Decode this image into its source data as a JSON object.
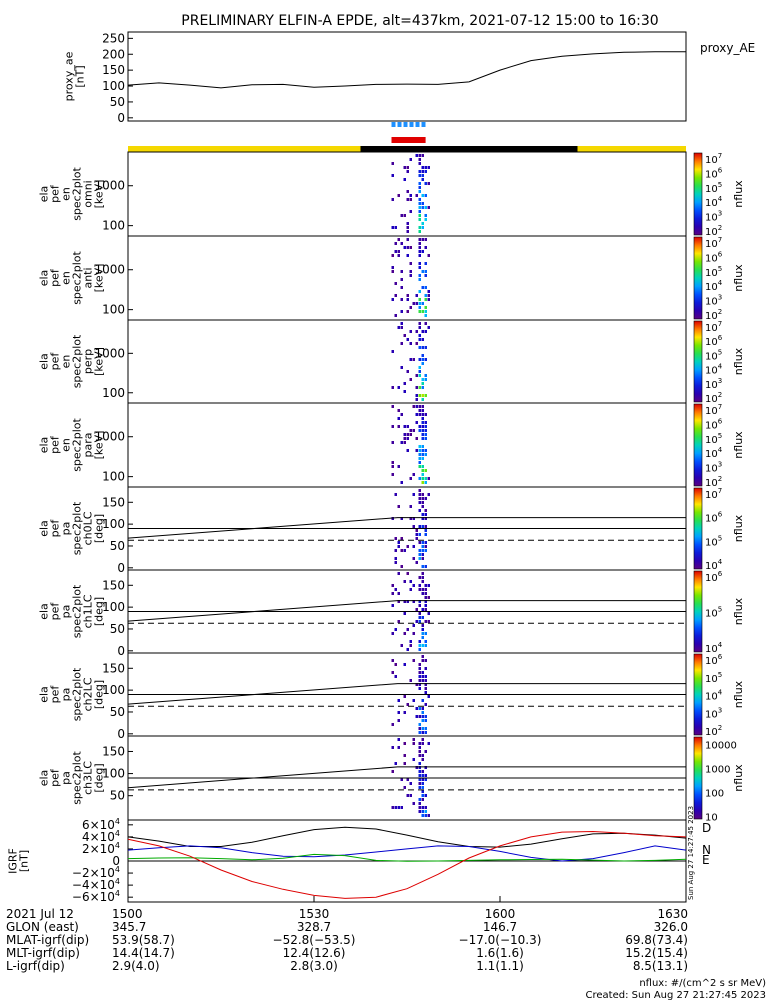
{
  "title": "PRELIMINARY ELFIN-A EPDE, alt=437km, 2021-07-12 15:00 to 16:30",
  "colors": {
    "sci_zone_yellow": "#f5d800",
    "sci_zone_black": "#000000",
    "red_bar": "#e00000",
    "blue_dots": "#1e90ff",
    "bx_line": "#0000cc",
    "by_line": "#00aa00",
    "bz_line": "#dd0000",
    "bmag_line": "#000000"
  },
  "chart_data": [
    {
      "id": "proxy_ae",
      "type": "line",
      "ylabel_lines": [
        "proxy_ae",
        "[nT]"
      ],
      "legend": "proxy_AE",
      "ylim": [
        -10,
        270
      ],
      "yticks": [
        "0",
        "50",
        "100",
        "150",
        "200",
        "250"
      ],
      "ytick_values": [
        0,
        50,
        100,
        150,
        200,
        250
      ],
      "x_minutes": [
        0,
        5,
        10,
        15,
        20,
        25,
        30,
        35,
        40,
        45,
        50,
        55,
        60,
        65,
        70,
        75,
        80,
        85,
        90
      ],
      "values": [
        103,
        110,
        103,
        94,
        104,
        105,
        96,
        100,
        105,
        106,
        105,
        113,
        150,
        180,
        194,
        201,
        206,
        208,
        208
      ]
    },
    {
      "id": "spec_omni",
      "type": "heatmap",
      "ylabel_lines": [
        "ela",
        "pef",
        "en",
        "spec2plot",
        "omni",
        "[keV]"
      ],
      "yscale": "log",
      "ylim": [
        55,
        7000
      ],
      "yticks": [
        "100",
        "1000"
      ],
      "ytick_values": [
        100,
        1000
      ],
      "zlabel": "nflux",
      "ztick_exps": [
        "2",
        "3",
        "4",
        "5",
        "6",
        "7"
      ],
      "zbase": "10"
    },
    {
      "id": "spec_anti",
      "type": "heatmap",
      "ylabel_lines": [
        "ela",
        "pef",
        "en",
        "spec2plot",
        "anti",
        "[keV]"
      ],
      "yscale": "log",
      "ylim": [
        55,
        7000
      ],
      "yticks": [
        "100",
        "1000"
      ],
      "ytick_values": [
        100,
        1000
      ],
      "zlabel": "nflux",
      "ztick_exps": [
        "2",
        "3",
        "4",
        "5",
        "6",
        "7"
      ],
      "zbase": "10"
    },
    {
      "id": "spec_perp",
      "type": "heatmap",
      "ylabel_lines": [
        "ela",
        "pef",
        "en",
        "spec2plot",
        "perp",
        "[keV]"
      ],
      "yscale": "log",
      "ylim": [
        55,
        7000
      ],
      "yticks": [
        "100",
        "1000"
      ],
      "ytick_values": [
        100,
        1000
      ],
      "zlabel": "nflux",
      "ztick_exps": [
        "2",
        "3",
        "4",
        "5",
        "6",
        "7"
      ],
      "zbase": "10"
    },
    {
      "id": "spec_para",
      "type": "heatmap",
      "ylabel_lines": [
        "ela",
        "pef",
        "en",
        "spec2plot",
        "para",
        "[keV]"
      ],
      "yscale": "log",
      "ylim": [
        55,
        7000
      ],
      "yticks": [
        "100",
        "1000"
      ],
      "ytick_values": [
        100,
        1000
      ],
      "zlabel": "nflux",
      "ztick_exps": [
        "2",
        "3",
        "4",
        "5",
        "6",
        "7"
      ],
      "zbase": "10"
    },
    {
      "id": "pa_ch0",
      "type": "heatmap",
      "ylabel_lines": [
        "ela",
        "pef",
        "pa",
        "spec2plot",
        "ch0LC",
        "[deg]"
      ],
      "ylim": [
        -5,
        185
      ],
      "yticks": [
        "0",
        "50",
        "100",
        "150"
      ],
      "ytick_values": [
        0,
        50,
        100,
        150
      ],
      "zlabel": "nflux",
      "ztick_exps": [
        "4",
        "5",
        "6",
        "7"
      ],
      "zbase": "10"
    },
    {
      "id": "pa_ch1",
      "type": "heatmap",
      "ylabel_lines": [
        "ela",
        "pef",
        "pa",
        "spec2plot",
        "ch1LC",
        "[deg]"
      ],
      "ylim": [
        -5,
        185
      ],
      "yticks": [
        "0",
        "50",
        "100",
        "150"
      ],
      "ytick_values": [
        0,
        50,
        100,
        150
      ],
      "zlabel": "nflux",
      "ztick_exps": [
        "4",
        "5",
        "6"
      ],
      "zbase": "10"
    },
    {
      "id": "pa_ch2",
      "type": "heatmap",
      "ylabel_lines": [
        "ela",
        "pef",
        "pa",
        "spec2plot",
        "ch2LC",
        "[deg]"
      ],
      "ylim": [
        -5,
        185
      ],
      "yticks": [
        "0",
        "50",
        "100",
        "150"
      ],
      "ytick_values": [
        0,
        50,
        100,
        150
      ],
      "zlabel": "nflux",
      "ztick_exps": [
        "2",
        "3",
        "4",
        "5",
        "6"
      ],
      "zbase": "10"
    },
    {
      "id": "pa_ch3",
      "type": "heatmap",
      "ylabel_lines": [
        "ela",
        "pef",
        "pa",
        "spec2plot",
        "ch3LC",
        "[deg]"
      ],
      "ylim": [
        -5,
        185
      ],
      "yticks": [
        "50",
        "100",
        "150"
      ],
      "ytick_values": [
        50,
        100,
        150
      ],
      "zlabel": "nflux",
      "ztick_plain": [
        "10",
        "100",
        "1000",
        "10000"
      ],
      "ztick_plain_values": [
        10,
        100,
        1000,
        10000
      ]
    },
    {
      "id": "igrf",
      "type": "line",
      "ylabel_lines": [
        "IGRF",
        "[nT]"
      ],
      "ylim": [
        -68000,
        68000
      ],
      "yticks": [
        "−6×10",
        "−4×10",
        "−2×10",
        "0",
        "2×10",
        "4×10",
        "6×10"
      ],
      "ytick_values": [
        -60000,
        -40000,
        -20000,
        0,
        20000,
        40000,
        60000
      ],
      "ytick_exp": "4",
      "legend_letters": [
        "D",
        "N",
        "E"
      ],
      "x_minutes": [
        0,
        5,
        10,
        15,
        20,
        25,
        30,
        35,
        40,
        45,
        50,
        55,
        60,
        65,
        70,
        75,
        80,
        85,
        90
      ],
      "series": [
        {
          "key": "bmag",
          "values": [
            40000,
            33000,
            24000,
            24000,
            31000,
            42000,
            52000,
            56000,
            53000,
            43000,
            32000,
            24000,
            23000,
            28000,
            37000,
            45000,
            46000,
            43000,
            38000
          ]
        },
        {
          "key": "bx",
          "values": [
            18000,
            22000,
            25000,
            22000,
            14000,
            8000,
            7000,
            10000,
            15000,
            20000,
            25000,
            24000,
            16000,
            6000,
            0,
            4000,
            14000,
            25000,
            18000
          ]
        },
        {
          "key": "by",
          "values": [
            4000,
            5000,
            5500,
            4000,
            2000,
            4500,
            11000,
            9000,
            1000,
            -500,
            0,
            1000,
            2000,
            2500,
            3000,
            1500,
            0,
            1000,
            3000
          ]
        },
        {
          "key": "bz",
          "values": [
            36000,
            25000,
            8000,
            -15000,
            -34000,
            -47000,
            -57000,
            -62000,
            -60000,
            -46000,
            -22000,
            5000,
            25000,
            40000,
            48000,
            49000,
            46000,
            42000,
            40000
          ]
        }
      ]
    }
  ],
  "x_axis": {
    "tick_labels": [
      "1500",
      "1530",
      "1600",
      "1630"
    ],
    "tick_minutes": [
      0,
      30,
      60,
      90
    ]
  },
  "orbit_table": {
    "row_labels": [
      "2021 Jul 12",
      "GLON (east)",
      "MLAT-igrf(dip)",
      "MLT-igrf(dip)",
      "L-igrf(dip)"
    ],
    "columns": [
      [
        "1500",
        "345.7",
        "53.9(58.7)",
        "14.4(14.7)",
        "2.9(4.0)"
      ],
      [
        "1530",
        "328.7",
        "−52.8(−53.5)",
        "12.4(12.6)",
        "2.8(3.0)"
      ],
      [
        "1600",
        "146.7",
        "−17.0(−10.3)",
        "1.6(1.6)",
        "1.1(1.1)"
      ],
      [
        "1630",
        "326.0",
        "69.8(73.4)",
        "15.2(15.4)",
        "8.5(13.1)"
      ]
    ]
  },
  "footer": {
    "units": "nflux: #/(cm^2 s sr MeV)",
    "created": "Created: Sun Aug 27 21:27:45 2023",
    "stamp": "Sun Aug 27 14:27:45 2023"
  }
}
